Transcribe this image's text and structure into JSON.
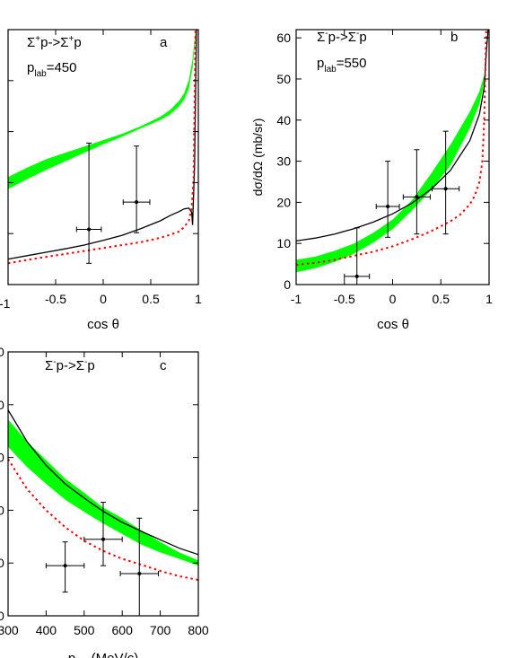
{
  "chart_data": [
    {
      "id": "a",
      "type": "line",
      "panel_letter": "a",
      "reaction": {
        "base": "Σ",
        "sup1": "+",
        "mid": "p->Σ",
        "sup2": "+",
        "end": "p"
      },
      "momentum": {
        "base": "p",
        "sub": "lab",
        "value": "=450"
      },
      "xlabel": "cos θ",
      "ylabel": "",
      "xlim": [
        -1,
        1
      ],
      "ylim": [
        0,
        60
      ],
      "xticks": [
        "-1",
        "-0.5",
        "0",
        "0.5",
        "1"
      ],
      "yticks": [],
      "band": {
        "color": "#00ff00",
        "x": [
          -1.0,
          -0.8,
          -0.6,
          -0.4,
          -0.2,
          0.0,
          0.2,
          0.4,
          0.6,
          0.7,
          0.8,
          0.85,
          0.9,
          0.94,
          0.97
        ],
        "upper": [
          25.3,
          27.5,
          29.5,
          31.0,
          32.5,
          34.0,
          35.5,
          37.3,
          39.5,
          41.0,
          43.3,
          45.0,
          48.0,
          53.0,
          60.0
        ],
        "lower": [
          22.5,
          24.8,
          27.0,
          29.0,
          31.0,
          33.0,
          34.8,
          36.8,
          38.7,
          40.0,
          42.0,
          43.5,
          46.0,
          51.0,
          58.0
        ]
      },
      "series": [
        {
          "style": "solid",
          "color": "#000000",
          "x": [
            -1.0,
            -0.8,
            -0.6,
            -0.4,
            -0.2,
            0.0,
            0.2,
            0.4,
            0.6,
            0.7,
            0.8,
            0.85,
            0.9,
            0.93,
            0.94,
            0.96,
            0.98
          ],
          "y": [
            6.0,
            6.8,
            7.6,
            8.4,
            9.3,
            10.4,
            11.6,
            13.2,
            15.0,
            16.2,
            17.2,
            17.8,
            18.0,
            17.0,
            14.0,
            28.0,
            60.0
          ]
        },
        {
          "style": "dotted",
          "color": "#ff0000",
          "x": [
            -1.0,
            -0.8,
            -0.6,
            -0.4,
            -0.2,
            0.0,
            0.2,
            0.4,
            0.6,
            0.7,
            0.8,
            0.85,
            0.9,
            0.93,
            0.95,
            0.97
          ],
          "y": [
            5.0,
            5.8,
            6.5,
            7.2,
            7.9,
            8.6,
            9.3,
            10.0,
            11.0,
            11.7,
            12.5,
            13.5,
            15.0,
            18.0,
            25.0,
            60.0
          ]
        }
      ],
      "points": [
        {
          "x": -0.15,
          "y": 13.0,
          "xerr": 0.13,
          "yerr_low": 8.0,
          "yerr_high": 20.3
        },
        {
          "x": 0.35,
          "y": 19.4,
          "xerr": 0.14,
          "yerr_low": 7.2,
          "yerr_high": 13.2
        }
      ]
    },
    {
      "id": "b",
      "type": "line",
      "panel_letter": "b",
      "reaction": {
        "base": "Σ",
        "sup1": "-",
        "mid": "p->Σ",
        "sup2": "-",
        "end": "p"
      },
      "momentum": {
        "base": "p",
        "sub": "lab",
        "value": "=550"
      },
      "xlabel": "cos θ",
      "ylabel": "dσ/dΩ (mb/sr)",
      "xlim": [
        -1,
        1
      ],
      "ylim": [
        0,
        62
      ],
      "xticks": [
        "-1",
        "-0.5",
        "0",
        "0.5",
        "1"
      ],
      "yticks": [
        "0",
        "10",
        "20",
        "30",
        "40",
        "50",
        "60"
      ],
      "band": {
        "color": "#00ff00",
        "x": [
          -1.0,
          -0.8,
          -0.6,
          -0.4,
          -0.2,
          0.0,
          0.2,
          0.4,
          0.6,
          0.8,
          0.9,
          0.95
        ],
        "upper": [
          6.0,
          6.8,
          8.2,
          10.0,
          12.6,
          15.8,
          20.5,
          27.0,
          34.0,
          42.0,
          47.0,
          51.0
        ],
        "lower": [
          3.0,
          4.0,
          5.5,
          7.5,
          10.2,
          13.5,
          18.0,
          23.0,
          29.0,
          38.0,
          44.0,
          49.0
        ]
      },
      "series": [
        {
          "style": "solid",
          "color": "#000000",
          "x": [
            -1.0,
            -0.8,
            -0.6,
            -0.4,
            -0.2,
            0.0,
            0.2,
            0.4,
            0.6,
            0.8,
            0.9,
            0.95,
            0.97,
            0.99
          ],
          "y": [
            10.6,
            11.3,
            12.3,
            13.6,
            15.2,
            17.2,
            19.8,
            23.2,
            27.8,
            35.0,
            41.5,
            48.0,
            56.0,
            62.0
          ]
        },
        {
          "style": "dotted",
          "color": "#ff0000",
          "x": [
            -1.0,
            -0.8,
            -0.6,
            -0.4,
            -0.2,
            0.0,
            0.2,
            0.4,
            0.6,
            0.7,
            0.8,
            0.85,
            0.9,
            0.93,
            0.95,
            0.97
          ],
          "y": [
            4.8,
            5.3,
            6.0,
            7.0,
            8.0,
            9.3,
            11.0,
            13.0,
            15.4,
            17.0,
            19.5,
            21.5,
            25.0,
            30.0,
            40.0,
            62.0
          ]
        }
      ],
      "points": [
        {
          "x": -0.37,
          "y": 2.0,
          "xerr": 0.13,
          "yerr_low": 2.0,
          "yerr_high": 11.8
        },
        {
          "x": -0.05,
          "y": 19.0,
          "xerr": 0.12,
          "yerr_low": 7.5,
          "yerr_high": 11.0
        },
        {
          "x": 0.25,
          "y": 21.3,
          "xerr": 0.14,
          "yerr_low": 9.0,
          "yerr_high": 11.5
        },
        {
          "x": 0.55,
          "y": 23.3,
          "xerr": 0.14,
          "yerr_low": 11.0,
          "yerr_high": 14.0
        }
      ]
    },
    {
      "id": "c",
      "type": "line",
      "panel_letter": "c",
      "reaction": {
        "base": "Σ",
        "sup1": "-",
        "mid": "p->Σ",
        "sup2": "-",
        "end": "p"
      },
      "xlabel_base": "p",
      "xlabel_sub": "lab",
      "xlabel_unit": " (MeV/c)",
      "ylabel": "",
      "xlim": [
        300,
        800
      ],
      "ylim": [
        0,
        50
      ],
      "xticks": [
        "300",
        "400",
        "500",
        "600",
        "700",
        "800"
      ],
      "yticks": [],
      "band": {
        "color": "#00ff00",
        "x": [
          300,
          350,
          400,
          450,
          500,
          550,
          600,
          650,
          700,
          750,
          800
        ],
        "upper": [
          37.2,
          33.0,
          29.5,
          26.0,
          23.3,
          20.5,
          18.5,
          16.2,
          14.0,
          12.0,
          10.5
        ],
        "lower": [
          32.0,
          28.2,
          25.0,
          22.0,
          19.7,
          17.5,
          15.5,
          13.5,
          12.0,
          10.8,
          9.5
        ]
      },
      "series": [
        {
          "style": "solid",
          "color": "#000000",
          "x": [
            300,
            350,
            400,
            450,
            500,
            550,
            600,
            650,
            700,
            750,
            800
          ],
          "y": [
            39.0,
            33.0,
            28.5,
            25.0,
            22.3,
            19.8,
            17.7,
            16.0,
            14.4,
            12.8,
            11.6
          ]
        },
        {
          "style": "dotted",
          "color": "#ff0000",
          "x": [
            300,
            350,
            400,
            450,
            500,
            550,
            600,
            650,
            700,
            750,
            800
          ],
          "y": [
            29.7,
            24.0,
            20.0,
            16.8,
            14.2,
            12.3,
            10.8,
            9.7,
            8.5,
            7.5,
            6.8
          ]
        }
      ],
      "points": [
        {
          "x": 450,
          "y": 9.5,
          "xerr": 50,
          "yerr_low": 5.0,
          "yerr_high": 4.5
        },
        {
          "x": 550,
          "y": 14.5,
          "xerr": 50,
          "yerr_low": 5.0,
          "yerr_high": 7.0
        },
        {
          "x": 645,
          "y": 8.0,
          "xerr": 50,
          "yerr_low": 8.0,
          "yerr_high": 10.5
        }
      ]
    }
  ],
  "partial_axis_ticks": {
    "a_bottom_left": "-1",
    "c_left": [
      "0",
      "0",
      "0",
      "0",
      "0",
      "0"
    ]
  }
}
